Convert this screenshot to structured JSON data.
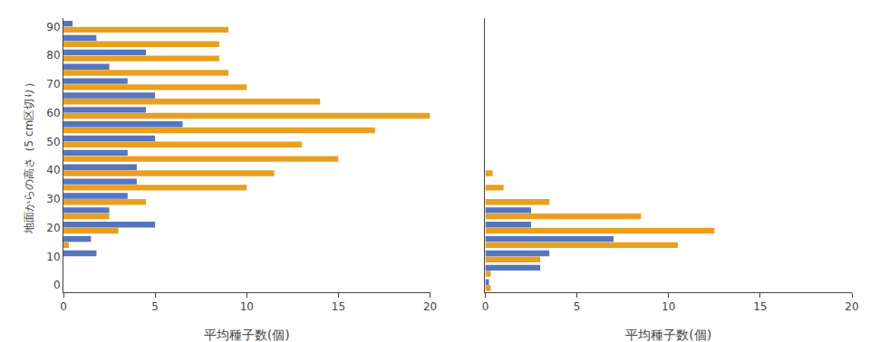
{
  "chart_data": [
    {
      "type": "bar",
      "orientation": "horizontal",
      "x": [
        0,
        5,
        10,
        15,
        20,
        25,
        30,
        35,
        40,
        45,
        50,
        55,
        60,
        65,
        70,
        75,
        80,
        85,
        90
      ],
      "series": [
        {
          "color": "#5575C0",
          "values": [
            0.0,
            0.0,
            1.8,
            1.5,
            5.0,
            2.5,
            3.5,
            4.0,
            4.0,
            3.5,
            5.0,
            6.5,
            4.5,
            5.0,
            3.5,
            2.5,
            4.5,
            1.8,
            0.5
          ]
        },
        {
          "color": "#E8A020",
          "values": [
            0.0,
            0.0,
            0.0,
            0.3,
            3.0,
            2.5,
            4.5,
            10.0,
            11.5,
            15.0,
            13.0,
            17.0,
            20.0,
            14.0,
            10.0,
            9.0,
            8.5,
            8.5,
            9.0
          ]
        }
      ],
      "xlabel": "平均種子数(個)",
      "ylabel": "地面からの高さ（5 cm区切り）",
      "xlim": [
        0,
        20
      ],
      "xticks": [
        0,
        5,
        10,
        15,
        20
      ],
      "ylim": [
        -2.5,
        93
      ],
      "yticks": [
        0,
        10,
        20,
        30,
        40,
        50,
        60,
        70,
        80,
        90
      ],
      "grid": false
    },
    {
      "type": "bar",
      "orientation": "horizontal",
      "x": [
        0,
        5,
        10,
        15,
        20,
        25,
        30,
        35,
        40,
        45,
        50,
        55,
        60,
        65,
        70,
        75,
        80,
        85,
        90
      ],
      "series": [
        {
          "color": "#5575C0",
          "values": [
            0.2,
            3.0,
            3.5,
            7.0,
            2.5,
            2.5,
            0.0,
            0.0,
            0.0,
            0.0,
            0.0,
            0.0,
            0.0,
            0.0,
            0.0,
            0.0,
            0.0,
            0.0,
            0.0
          ]
        },
        {
          "color": "#E8A020",
          "values": [
            0.3,
            0.3,
            3.0,
            10.5,
            12.5,
            8.5,
            3.5,
            1.0,
            0.4,
            0.0,
            0.0,
            0.0,
            0.0,
            0.0,
            0.0,
            0.0,
            0.0,
            0.0,
            0.0
          ]
        }
      ],
      "xlabel": "平均種子数(個)",
      "xlim": [
        0,
        20
      ],
      "xticks": [
        0,
        5,
        10,
        15,
        20
      ],
      "ylim": [
        -2.5,
        93
      ],
      "yticks": [
        0,
        10,
        20,
        30,
        40,
        50,
        60,
        70,
        80,
        90
      ],
      "grid": false,
      "tick_labels": "x"
    }
  ]
}
